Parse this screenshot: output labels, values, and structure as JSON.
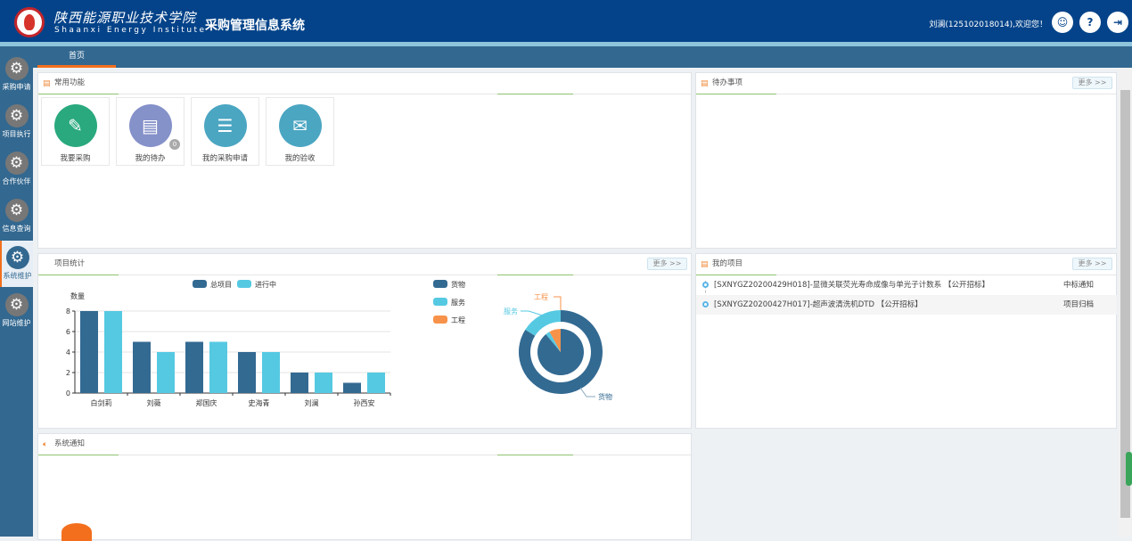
{
  "header": {
    "school_cn": "陕西能源职业技术学院",
    "school_en": "Shaanxi Energy Institute",
    "system_title": "采购管理信息系统",
    "welcome": "刘澜(125102018014),欢迎您！",
    "buttons": [
      {
        "icon": "wechat-icon"
      },
      {
        "icon": "help-icon",
        "label": "?"
      },
      {
        "icon": "logout-icon",
        "label": "⇥"
      }
    ]
  },
  "tabs": [
    {
      "label": "首页",
      "active": true
    }
  ],
  "sidebar": {
    "items": [
      {
        "label": "采购申请"
      },
      {
        "label": "项目执行"
      },
      {
        "label": "合作伙伴"
      },
      {
        "label": "信息查询"
      },
      {
        "label": "系统维护",
        "active": true
      },
      {
        "label": "网站维护"
      }
    ]
  },
  "quick": {
    "title": "常用功能",
    "items": [
      {
        "label": "我要采购",
        "color": "#2aa97f",
        "icon": "bag-edit-icon"
      },
      {
        "label": "我的待办",
        "color": "#8591c9",
        "icon": "todo-clock-icon",
        "badge": "0"
      },
      {
        "label": "我的采购申请",
        "color": "#4ba6c2",
        "icon": "clipboard-icon"
      },
      {
        "label": "我的验收",
        "color": "#4ba6c2",
        "icon": "receipt-icon"
      }
    ]
  },
  "todo": {
    "title": "待办事项",
    "more": "更多 >>"
  },
  "stats": {
    "title": "项目统计",
    "more": "更多 >>"
  },
  "projects": {
    "title": "我的项目",
    "more": "更多 >>",
    "rows": [
      {
        "title": "[SXNYGZ20200429H018]-显微关联荧光寿命成像与单光子计数系 【公开招标】",
        "status": "中标通知"
      },
      {
        "title": "[SXNYGZ20200427H017]-超声波清洗机DTD 【公开招标】",
        "status": "项目归档"
      }
    ]
  },
  "notice": {
    "title": "系统通知"
  },
  "chart_data": [
    {
      "type": "bar",
      "ylabel": "数量",
      "ylim": [
        0,
        8
      ],
      "yticks": [
        0,
        2,
        4,
        6,
        8
      ],
      "grid": true,
      "legend": "top",
      "categories": [
        "白剑莉",
        "刘薇",
        "郑国庆",
        "史海青",
        "刘澜",
        "孙西安"
      ],
      "series": [
        {
          "name": "总项目",
          "color": "#336a92",
          "values": [
            8,
            5,
            5,
            4,
            2,
            1
          ]
        },
        {
          "name": "进行中",
          "color": "#56c9e2",
          "values": [
            8,
            4,
            5,
            4,
            2,
            2
          ]
        }
      ]
    },
    {
      "type": "pie",
      "legend": "top-left",
      "labels": [
        "货物",
        "服务",
        "工程"
      ],
      "colors": [
        "#336a92",
        "#56c9e2",
        "#f7924a"
      ],
      "outer_ring_percent": [
        84,
        16,
        0
      ],
      "inner_pie_percent": [
        89,
        3,
        8
      ]
    }
  ]
}
